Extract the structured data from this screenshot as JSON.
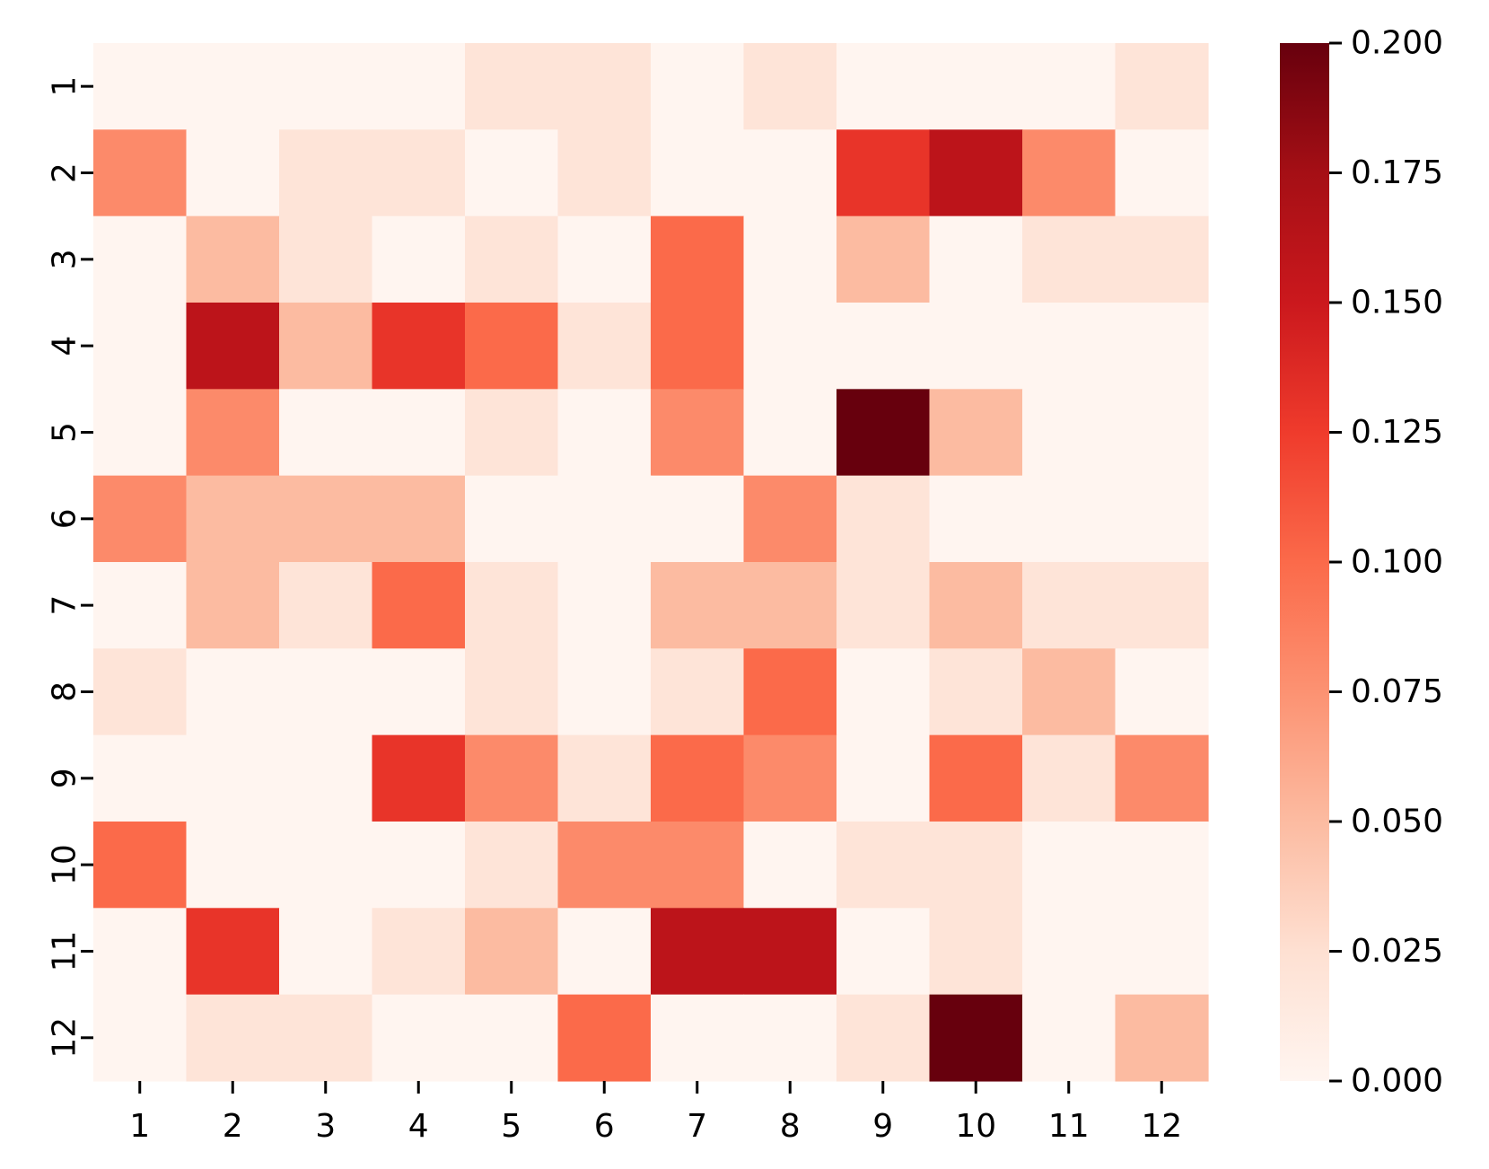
{
  "chart_data": {
    "type": "heatmap",
    "x_categories": [
      "1",
      "2",
      "3",
      "4",
      "5",
      "6",
      "7",
      "8",
      "9",
      "10",
      "11",
      "12"
    ],
    "y_categories": [
      "1",
      "2",
      "3",
      "4",
      "5",
      "6",
      "7",
      "8",
      "9",
      "10",
      "11",
      "12"
    ],
    "values": [
      [
        0.0,
        0.0,
        0.0,
        0.0,
        0.02,
        0.02,
        0.0,
        0.02,
        0.0,
        0.0,
        0.0,
        0.02
      ],
      [
        0.08,
        0.0,
        0.02,
        0.02,
        0.0,
        0.02,
        0.0,
        0.0,
        0.13,
        0.16,
        0.08,
        0.0
      ],
      [
        0.0,
        0.05,
        0.02,
        0.0,
        0.02,
        0.0,
        0.1,
        0.0,
        0.05,
        0.0,
        0.02,
        0.02
      ],
      [
        0.0,
        0.16,
        0.05,
        0.13,
        0.1,
        0.02,
        0.1,
        0.0,
        0.0,
        0.0,
        0.0,
        0.0
      ],
      [
        0.0,
        0.08,
        0.0,
        0.0,
        0.02,
        0.0,
        0.08,
        0.0,
        0.2,
        0.05,
        0.0,
        0.0
      ],
      [
        0.08,
        0.05,
        0.05,
        0.05,
        0.0,
        0.0,
        0.0,
        0.08,
        0.02,
        0.0,
        0.0,
        0.0
      ],
      [
        0.0,
        0.05,
        0.02,
        0.1,
        0.02,
        0.0,
        0.05,
        0.05,
        0.02,
        0.05,
        0.02,
        0.02
      ],
      [
        0.02,
        0.0,
        0.0,
        0.0,
        0.02,
        0.0,
        0.02,
        0.1,
        0.0,
        0.02,
        0.05,
        0.0
      ],
      [
        0.0,
        0.0,
        0.0,
        0.13,
        0.08,
        0.02,
        0.1,
        0.08,
        0.0,
        0.1,
        0.02,
        0.08
      ],
      [
        0.1,
        0.0,
        0.0,
        0.0,
        0.02,
        0.08,
        0.08,
        0.0,
        0.02,
        0.02,
        0.0,
        0.0
      ],
      [
        0.0,
        0.13,
        0.0,
        0.02,
        0.05,
        0.0,
        0.16,
        0.16,
        0.0,
        0.02,
        0.0,
        0.0
      ],
      [
        0.0,
        0.02,
        0.02,
        0.0,
        0.0,
        0.1,
        0.0,
        0.0,
        0.02,
        0.2,
        0.0,
        0.05
      ]
    ],
    "colormap": "Reds",
    "vmin": 0.0,
    "vmax": 0.2,
    "colorbar_ticks": [
      "0.000",
      "0.025",
      "0.050",
      "0.075",
      "0.100",
      "0.125",
      "0.150",
      "0.175",
      "0.200"
    ],
    "colorbar_tick_values": [
      0.0,
      0.025,
      0.05,
      0.075,
      0.1,
      0.125,
      0.15,
      0.175,
      0.2
    ],
    "colorbar_position": "right",
    "grid": false
  }
}
